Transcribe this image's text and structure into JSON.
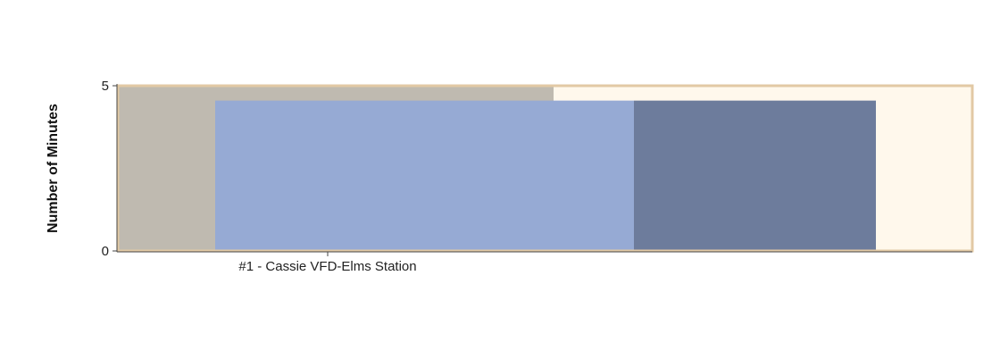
{
  "chart_data": {
    "type": "bar",
    "title": "",
    "xlabel": "",
    "ylabel": "Number of Minutes",
    "ylim": [
      0,
      5
    ],
    "yticks": [
      0,
      5
    ],
    "grid": false,
    "categories": [
      "#1 - Cassie VFD-Elms Station"
    ],
    "series": [
      {
        "values": [
          4.55
        ],
        "color": "#96aad4"
      },
      {
        "values": [
          4.55
        ],
        "color": "#6d7c9c"
      }
    ],
    "reference_bands": [
      {
        "value": 5,
        "color": "#bfbab0"
      },
      {
        "value": 5,
        "color": "#fff8ec"
      }
    ],
    "frame_color": "#e2c9a4"
  }
}
